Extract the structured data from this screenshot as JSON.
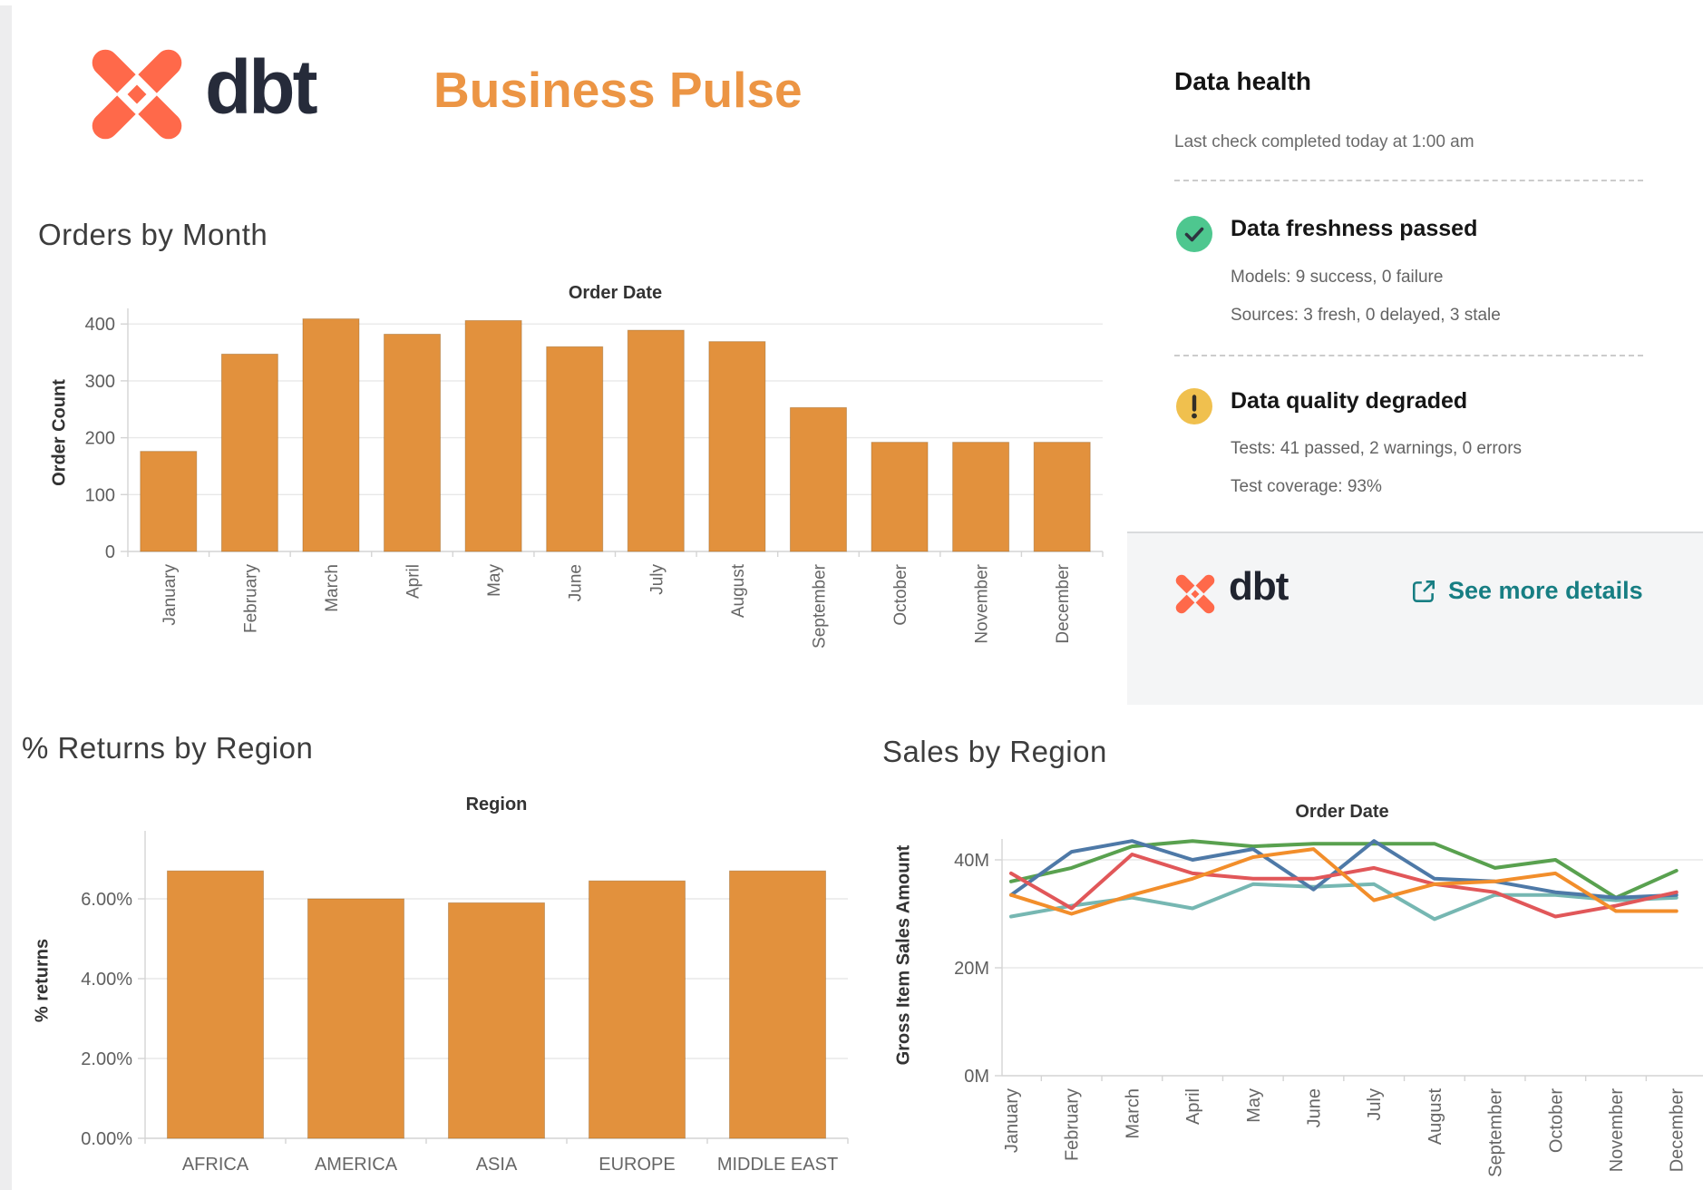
{
  "header": {
    "brand": "dbt",
    "title": "Business Pulse"
  },
  "colors": {
    "brand_coral": "#FF694A",
    "brand_navy": "#262B3A",
    "title_orange": "#EC9544",
    "bar_orange": "#E2913D",
    "link_teal": "#177E83",
    "success_green": "#4EC78F",
    "warning_yellow": "#F0C04E"
  },
  "data_health": {
    "title": "Data health",
    "subtitle": "Last check completed today at 1:00 am",
    "freshness": {
      "title": "Data freshness passed",
      "line1": "Models: 9 success, 0 failure",
      "line2": "Sources: 3 fresh, 0 delayed, 3 stale"
    },
    "quality": {
      "title": "Data quality degraded",
      "line1": "Tests: 41 passed, 2 warnings, 0 errors",
      "line2": "Test coverage: 93%"
    },
    "footer": {
      "brand": "dbt",
      "link_label": "See more details"
    }
  },
  "chart_data": [
    {
      "type": "bar",
      "title": "Orders by Month",
      "xlabel": "Order Date",
      "ylabel": "Order Count",
      "categories": [
        "January",
        "February",
        "March",
        "April",
        "May",
        "June",
        "July",
        "August",
        "September",
        "October",
        "November",
        "December"
      ],
      "values": [
        176,
        347,
        409,
        382,
        406,
        360,
        389,
        369,
        253,
        192,
        192,
        192
      ],
      "yticks": [
        0,
        100,
        200,
        300,
        400
      ],
      "ytick_labels": [
        "0",
        "100",
        "200",
        "300",
        "400"
      ],
      "ylim": [
        0,
        430
      ],
      "bar_color": "#E2913D",
      "grid": true,
      "legend": "none"
    },
    {
      "type": "bar",
      "title": "% Returns by Region",
      "xlabel": "Region",
      "ylabel": "% returns",
      "categories": [
        "AFRICA",
        "AMERICA",
        "ASIA",
        "EUROPE",
        "MIDDLE EAST"
      ],
      "values": [
        6.7,
        6.0,
        5.9,
        6.45,
        6.7
      ],
      "yticks": [
        0,
        2,
        4,
        6
      ],
      "ytick_labels": [
        "0.00%",
        "2.00%",
        "4.00%",
        "6.00%"
      ],
      "ylim": [
        0,
        7.7
      ],
      "bar_color": "#E2913D",
      "grid": true,
      "legend": "none"
    },
    {
      "type": "line",
      "title": "Sales by Region",
      "xlabel": "Order Date",
      "ylabel": "Gross Item Sales Amount",
      "categories": [
        "January",
        "February",
        "March",
        "April",
        "May",
        "June",
        "July",
        "August",
        "September",
        "October",
        "November",
        "December"
      ],
      "yticks": [
        0,
        20,
        40
      ],
      "ytick_labels": [
        "0M",
        "20M",
        "40M"
      ],
      "ylim": [
        0,
        46
      ],
      "unit": "M",
      "grid": true,
      "legend": "none",
      "series": [
        {
          "name": "series-blue",
          "color": "#4E79A7",
          "values": [
            33.5,
            41.5,
            43.5,
            40,
            42,
            34.5,
            43.5,
            36.5,
            36,
            34,
            33,
            33.5
          ]
        },
        {
          "name": "series-orange",
          "color": "#F28E2B",
          "values": [
            33.5,
            30,
            33.5,
            36.5,
            40.5,
            42,
            32.5,
            35.5,
            36,
            37.5,
            30.5,
            30.5
          ]
        },
        {
          "name": "series-red",
          "color": "#E15759",
          "values": [
            37.5,
            31,
            41,
            37.5,
            36.5,
            36.5,
            38.5,
            35.5,
            34,
            29.5,
            31.5,
            34
          ]
        },
        {
          "name": "series-teal",
          "color": "#76B7B2",
          "values": [
            29.5,
            31.5,
            33,
            31,
            35.5,
            35,
            35.5,
            29,
            33.5,
            33.5,
            32.5,
            33
          ]
        },
        {
          "name": "series-green",
          "color": "#59A14F",
          "values": [
            36,
            38.5,
            42.5,
            43.5,
            42.5,
            43,
            43,
            43,
            38.5,
            40,
            33,
            38
          ]
        }
      ]
    }
  ]
}
